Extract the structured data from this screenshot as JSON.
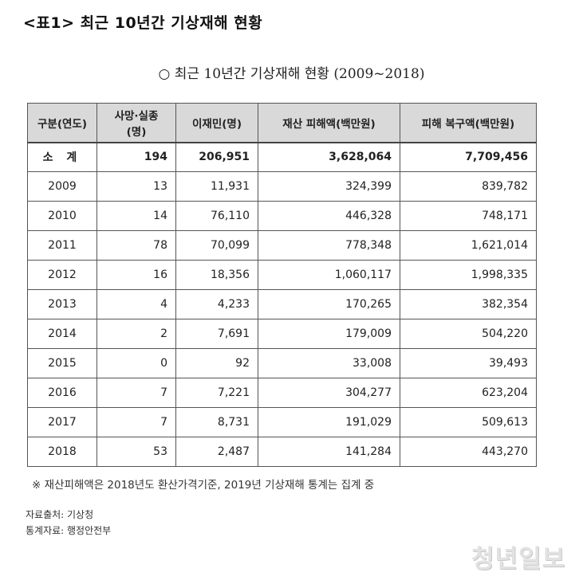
{
  "heading": "<표1> 최근 10년간 기상재해 현황",
  "subtitle": "○ 최근 10년간 기상재해 현황 (2009~2018)",
  "table": {
    "headers": [
      "구분(연도)",
      "사망·실종(명)",
      "이재민(명)",
      "재산 피해액(백만원)",
      "피해 복구액(백만원)"
    ],
    "total": {
      "label": "소 계",
      "deaths": "194",
      "displaced": "206,951",
      "damage": "3,628,064",
      "recovery": "7,709,456"
    },
    "rows": [
      {
        "year": "2009",
        "deaths": "13",
        "displaced": "11,931",
        "damage": "324,399",
        "recovery": "839,782"
      },
      {
        "year": "2010",
        "deaths": "14",
        "displaced": "76,110",
        "damage": "446,328",
        "recovery": "748,171"
      },
      {
        "year": "2011",
        "deaths": "78",
        "displaced": "70,099",
        "damage": "778,348",
        "recovery": "1,621,014"
      },
      {
        "year": "2012",
        "deaths": "16",
        "displaced": "18,356",
        "damage": "1,060,117",
        "recovery": "1,998,335"
      },
      {
        "year": "2013",
        "deaths": "4",
        "displaced": "4,233",
        "damage": "170,265",
        "recovery": "382,354"
      },
      {
        "year": "2014",
        "deaths": "2",
        "displaced": "7,691",
        "damage": "179,009",
        "recovery": "504,220"
      },
      {
        "year": "2015",
        "deaths": "0",
        "displaced": "92",
        "damage": "33,008",
        "recovery": "39,493"
      },
      {
        "year": "2016",
        "deaths": "7",
        "displaced": "7,221",
        "damage": "304,277",
        "recovery": "623,204"
      },
      {
        "year": "2017",
        "deaths": "7",
        "displaced": "8,731",
        "damage": "191,029",
        "recovery": "509,613"
      },
      {
        "year": "2018",
        "deaths": "53",
        "displaced": "2,487",
        "damage": "141,284",
        "recovery": "443,270"
      }
    ]
  },
  "footnote": "※ 재산피해액은 2018년도 환산가격기준, 2019년 기상재해 통계는 집계 중",
  "source_1": "자료출처: 기상청",
  "source_2": "통계자료: 행정안전부",
  "watermark": "청년일보"
}
